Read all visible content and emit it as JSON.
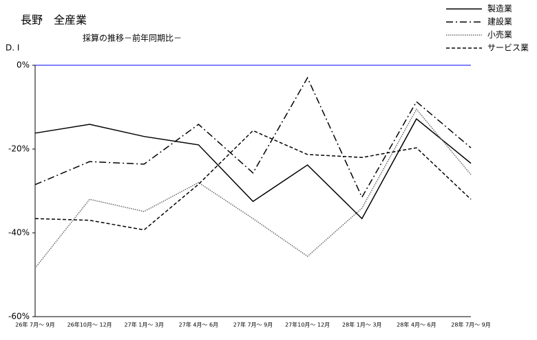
{
  "chart_data": {
    "type": "line",
    "title": "長野　全産業",
    "subtitle": "採算の推移－前年同期比－",
    "y_label": "D. I",
    "categories": [
      "26年 7月～ 9月",
      "26年10月～ 12月",
      "27年 1月～ 3月",
      "27年 4月～ 6月",
      "27年 7月～ 9月",
      "27年10月～ 12月",
      "28年 1月～ 3月",
      "28年 4月～ 6月",
      "28年 7月～ 9月"
    ],
    "series": [
      {
        "name": "製造業",
        "color": "#000000",
        "style": "solid",
        "values": [
          -16.2,
          -14.1,
          -17.0,
          -19.0,
          -32.5,
          -23.8,
          -36.6,
          -12.8,
          -23.4
        ]
      },
      {
        "name": "建設業",
        "color": "#000000",
        "style": "dashdot",
        "values": [
          -28.5,
          -23.0,
          -23.6,
          -14.1,
          -25.7,
          -3.0,
          -31.5,
          -8.7,
          -19.7
        ]
      },
      {
        "name": "小売業",
        "color": "#666666",
        "style": "dotted",
        "values": [
          -48.4,
          -32.0,
          -34.9,
          -28.0,
          -36.6,
          -45.6,
          -34.1,
          -10.5,
          -26.1
        ]
      },
      {
        "name": "サービス業",
        "color": "#000000",
        "style": "dashed",
        "values": [
          -36.6,
          -37.0,
          -39.3,
          -28.4,
          -15.6,
          -21.3,
          -22.0,
          -19.7,
          -32.0
        ]
      }
    ],
    "ylim": [
      -60,
      0
    ],
    "yticks": [
      {
        "value": 0,
        "label": "0%"
      },
      {
        "value": -20,
        "label": "-20%"
      },
      {
        "value": -40,
        "label": "-40%"
      },
      {
        "value": -60,
        "label": "-60%"
      }
    ],
    "zero_line_color": "#0000ff",
    "legend": "top-right"
  }
}
